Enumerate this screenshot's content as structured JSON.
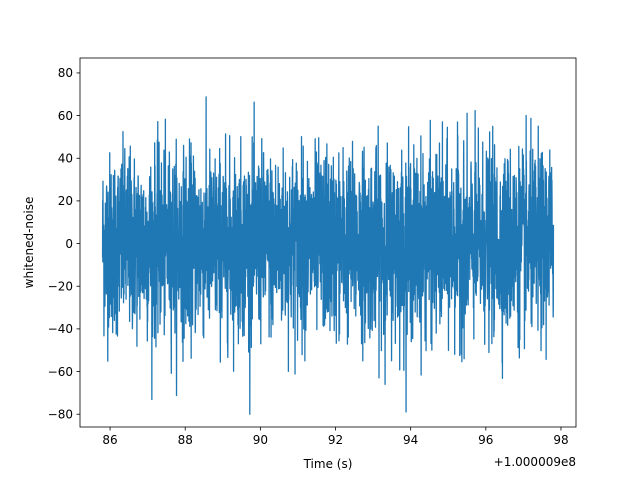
{
  "chart_data": {
    "type": "line",
    "title": "",
    "xlabel": "Time (s)",
    "ylabel": "whitened-noise",
    "x_offset_label": "+1.000009e8",
    "xlim": [
      85.2,
      98.4
    ],
    "ylim": [
      -86,
      87
    ],
    "xticks": [
      86,
      88,
      90,
      92,
      94,
      96,
      98
    ],
    "xtick_labels": [
      "86",
      "88",
      "90",
      "92",
      "94",
      "96",
      "98"
    ],
    "yticks": [
      -80,
      -60,
      -40,
      -20,
      0,
      20,
      40,
      60,
      80
    ],
    "ytick_labels": [
      "−80",
      "−60",
      "−40",
      "−20",
      "0",
      "20",
      "40",
      "60",
      "80"
    ],
    "grid": false,
    "series": [
      {
        "color": "#1f77b4",
        "x_range": [
          85.8,
          97.8
        ],
        "envelope_min": -80,
        "envelope_max": 80,
        "dense_band": [
          -50,
          50
        ]
      }
    ]
  }
}
